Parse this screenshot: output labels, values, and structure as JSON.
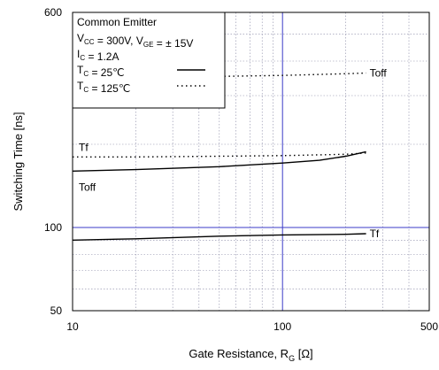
{
  "chart_data": {
    "type": "line",
    "x_scale": "log",
    "y_scale": "log",
    "xlim": [
      10,
      500
    ],
    "ylim": [
      50,
      600
    ],
    "xlabel": "Gate Resistance, R",
    "xlabel_sub": "G",
    "xlabel_unit": "[Ω]",
    "ylabel": "Switching Time [ns]",
    "x_ticks": [
      {
        "value": 10,
        "label": "10"
      },
      {
        "value": 100,
        "label": "100"
      },
      {
        "value": 500,
        "label": "500"
      }
    ],
    "y_ticks": [
      {
        "value": 50,
        "label": "50"
      },
      {
        "value": 100,
        "label": "100"
      },
      {
        "value": 600,
        "label": "600"
      }
    ],
    "grid": true,
    "legend": {
      "position": "top-left",
      "lines": [
        {
          "main": "Common Emitter"
        },
        {
          "main": "V",
          "sub": "CC",
          "rest": " = 300V, V",
          "sub2": "GE",
          "rest2": " = ± 15V"
        },
        {
          "main": "I",
          "sub": "C",
          "rest": " = 1.2A"
        },
        {
          "main": "T",
          "sub": "C",
          "rest": " =   25℃",
          "style": "solid"
        },
        {
          "main": "T",
          "sub": "C",
          "rest": " = 125℃",
          "style": "dotted"
        }
      ]
    },
    "series": [
      {
        "name": "Toff",
        "style": "dotted",
        "label_pos": "right",
        "x": [
          20,
          50,
          100,
          200,
          250
        ],
        "y": [
          350,
          352,
          355,
          360,
          362
        ]
      },
      {
        "name": "Tf",
        "style": "dotted",
        "label_pos": "left",
        "x": [
          10,
          20,
          50,
          100,
          200,
          250
        ],
        "y": [
          180,
          180,
          181,
          182,
          184,
          186
        ]
      },
      {
        "name": "Toff",
        "style": "solid",
        "label_pos": "left-below",
        "x": [
          10,
          20,
          50,
          100,
          150,
          200,
          250
        ],
        "y": [
          160,
          162,
          166,
          171,
          175,
          181,
          188
        ]
      },
      {
        "name": "Tf",
        "style": "solid",
        "label_pos": "right",
        "x": [
          10,
          20,
          50,
          100,
          200,
          250
        ],
        "y": [
          90,
          91,
          93,
          94,
          94.5,
          95
        ]
      }
    ]
  }
}
